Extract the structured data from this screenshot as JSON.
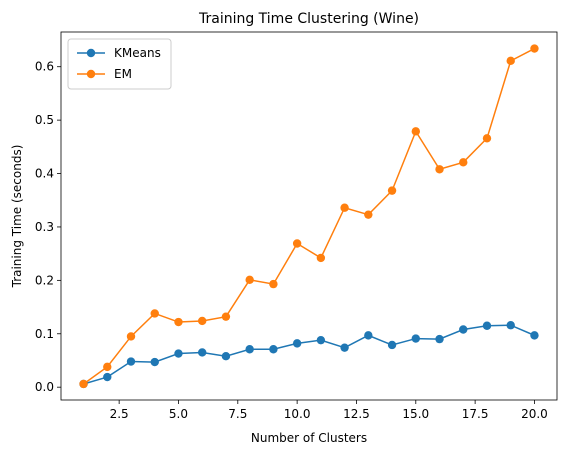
{
  "chart_data": {
    "type": "line",
    "title": "Training Time Clustering (Wine)",
    "xlabel": "Number of Clusters",
    "ylabel": "Training Time (seconds)",
    "x": [
      1,
      2,
      3,
      4,
      5,
      6,
      7,
      8,
      9,
      10,
      11,
      12,
      13,
      14,
      15,
      16,
      17,
      18,
      19,
      20
    ],
    "xlim": [
      0.05,
      20.95
    ],
    "ylim": [
      -0.024,
      0.665
    ],
    "xticks": [
      2.5,
      5.0,
      7.5,
      10.0,
      12.5,
      15.0,
      17.5,
      20.0
    ],
    "xtick_labels": [
      "2.5",
      "5.0",
      "7.5",
      "10.0",
      "12.5",
      "15.0",
      "17.5",
      "20.0"
    ],
    "yticks": [
      0.0,
      0.1,
      0.2,
      0.3,
      0.4,
      0.5,
      0.6
    ],
    "ytick_labels": [
      "0.0",
      "0.1",
      "0.2",
      "0.3",
      "0.4",
      "0.5",
      "0.6"
    ],
    "grid": false,
    "legend_position": "top-left",
    "series": [
      {
        "name": "KMeans",
        "color": "#1f77b4",
        "marker": "circle",
        "values": [
          0.006,
          0.019,
          0.048,
          0.047,
          0.063,
          0.065,
          0.058,
          0.071,
          0.071,
          0.082,
          0.088,
          0.074,
          0.097,
          0.079,
          0.091,
          0.09,
          0.108,
          0.115,
          0.116,
          0.097
        ]
      },
      {
        "name": "EM",
        "color": "#ff7f0e",
        "marker": "circle",
        "values": [
          0.006,
          0.038,
          0.095,
          0.138,
          0.122,
          0.124,
          0.132,
          0.201,
          0.193,
          0.269,
          0.242,
          0.336,
          0.323,
          0.368,
          0.479,
          0.408,
          0.421,
          0.466,
          0.611,
          0.634
        ]
      }
    ]
  }
}
